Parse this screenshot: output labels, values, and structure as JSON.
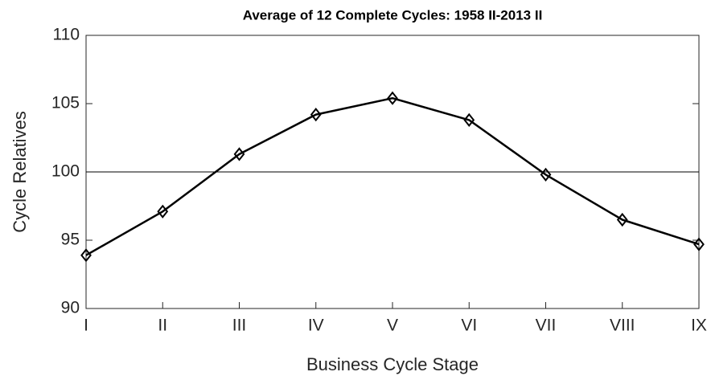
{
  "chart_data": {
    "type": "line",
    "title": "Average of 12 Complete Cycles: 1958 II-2013 II",
    "x_label": "Business Cycle Stage",
    "y_label": "Cycle Relatives",
    "categories": [
      "I",
      "II",
      "III",
      "IV",
      "V",
      "VI",
      "VII",
      "VIII",
      "IX"
    ],
    "series": [
      {
        "name": "Cycle Relatives",
        "color": "#000000",
        "marker": "diamond",
        "values": [
          93.9,
          97.1,
          101.3,
          104.2,
          105.4,
          103.8,
          99.8,
          96.5,
          94.7
        ]
      }
    ],
    "ylim": [
      90,
      110
    ],
    "yticks": [
      90,
      95,
      100,
      105,
      110
    ],
    "reference_line": 100
  }
}
